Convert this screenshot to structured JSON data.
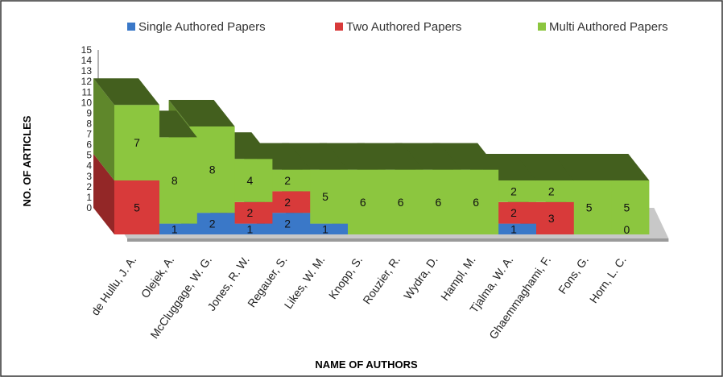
{
  "chart_data": {
    "type": "bar",
    "stacked": true,
    "categories": [
      "de Hullu, J. A.",
      "Olejek, A.",
      "McCluggage, W. G.",
      "Jones, R. W.",
      "Regauer, S.",
      "Likes, W. M.",
      "Knopp, S.",
      "Rouzier, R.",
      "Wydra, D.",
      "Hampl, M.",
      "Tjalma, W. A.",
      "Ghaemmaghami, F.",
      "Fons, G.",
      "Horn, L. C."
    ],
    "series": [
      {
        "name": "Single Authored Papers",
        "values": [
          0,
          1,
          2,
          1,
          2,
          1,
          0,
          0,
          0,
          0,
          1,
          0,
          0,
          0
        ],
        "color": "#3a78c8"
      },
      {
        "name": "Two Authored Papers",
        "values": [
          5,
          0,
          0,
          2,
          2,
          0,
          0,
          0,
          0,
          0,
          2,
          3,
          0,
          0
        ],
        "color": "#d83a3a"
      },
      {
        "name": "Multi  Authored Papers",
        "values": [
          7,
          8,
          8,
          4,
          2,
          5,
          6,
          6,
          6,
          6,
          2,
          2,
          5,
          5
        ],
        "color": "#8cc63f"
      }
    ],
    "data_labels": [
      [
        "",
        "5",
        "7"
      ],
      [
        "1",
        "",
        "8"
      ],
      [
        "2",
        "",
        "8"
      ],
      [
        "1",
        "2",
        "4"
      ],
      [
        "2",
        "2",
        "2"
      ],
      [
        "1",
        "",
        "5"
      ],
      [
        "",
        "",
        "6"
      ],
      [
        "",
        "",
        "6"
      ],
      [
        "",
        "",
        "6"
      ],
      [
        "",
        "",
        "6"
      ],
      [
        "1",
        "2",
        "2"
      ],
      [
        "",
        "3",
        "2"
      ],
      [
        "",
        "",
        "5"
      ],
      [
        "0",
        "",
        "5"
      ]
    ],
    "y_ticks": [
      "0",
      "1",
      "2",
      "3",
      "4",
      "5",
      "6",
      "7",
      "8",
      "9",
      "10",
      "11",
      "12",
      "13",
      "14",
      "15"
    ],
    "ylim": [
      0,
      15
    ],
    "xlabel": "NAME OF AUTHORS",
    "ylabel": "NO. OF ARTICLES",
    "legend_position": "top",
    "grid": false
  }
}
